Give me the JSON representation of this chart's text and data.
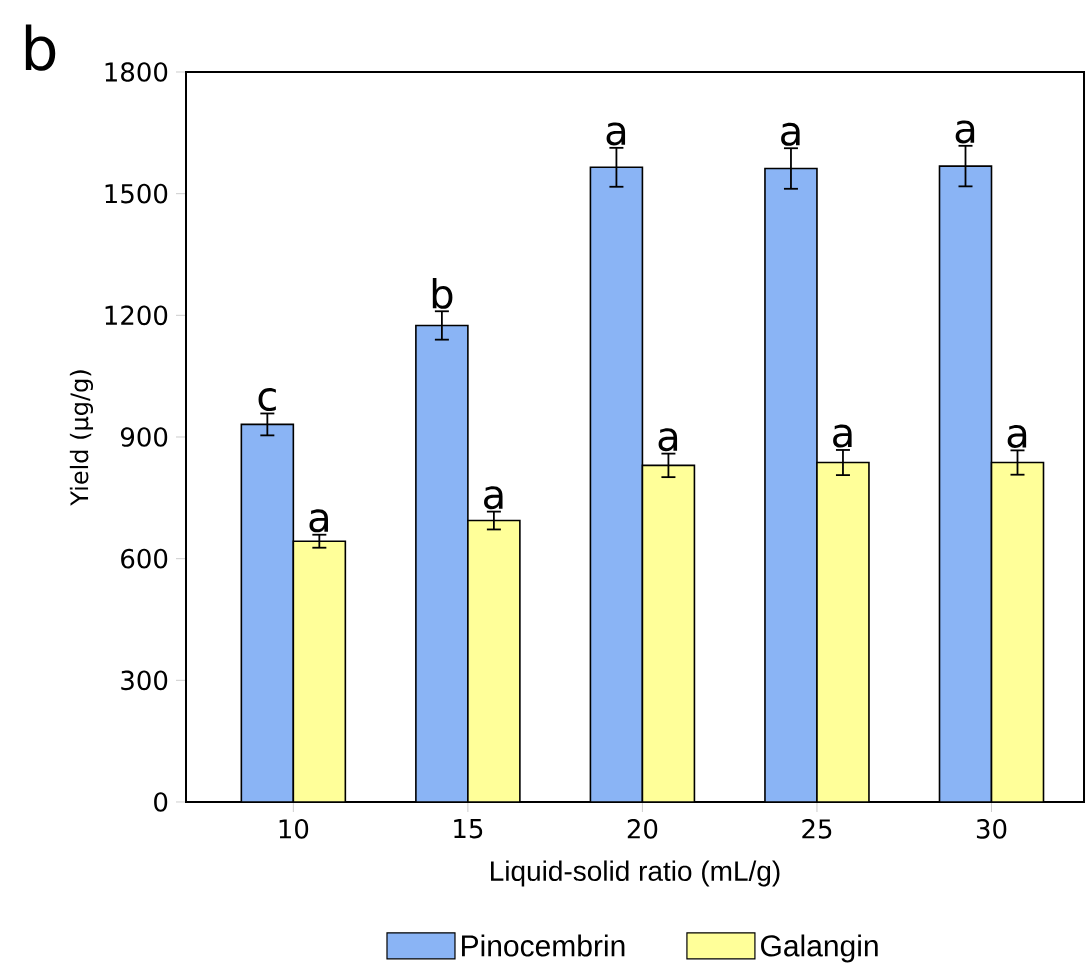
{
  "chart_data": {
    "type": "bar",
    "xlabel": "Liquid-solid ratio (mL/g)",
    "ylabel": "Yield (µg/g)",
    "categories": [
      "10",
      "15",
      "20",
      "25",
      "30"
    ],
    "series": [
      {
        "name": "Pinocembrin",
        "color": "#8ab4f5",
        "values": [
          931,
          1175,
          1565,
          1562,
          1568
        ],
        "errors": [
          27,
          35,
          48,
          50,
          50
        ]
      },
      {
        "name": "Galangin",
        "color": "#ffff99",
        "values": [
          643,
          694,
          830,
          837,
          837
        ],
        "errors": [
          16,
          22,
          29,
          31,
          30
        ]
      }
    ],
    "ylim": [
      0,
      1800
    ],
    "yticks": [
      0,
      300,
      600,
      900,
      1200,
      1500,
      1800
    ],
    "legend": "bottom",
    "grid": false,
    "annotations": [
      "b",
      {
        "text": "c",
        "x": "10",
        "y": 931
      },
      {
        "text": "a",
        "x": "10",
        "y": 643
      },
      {
        "text": "b",
        "x": "15",
        "y": 1175
      },
      {
        "text": "a",
        "x": "15",
        "y": 694
      },
      {
        "text": "a",
        "x": "20",
        "y": 1565
      },
      {
        "text": "a",
        "x": "20",
        "y": 830
      },
      {
        "text": "a",
        "x": "25",
        "y": 1562
      },
      {
        "text": "a",
        "x": "25",
        "y": 837
      },
      {
        "text": "a",
        "x": "30",
        "y": 1568
      },
      {
        "text": "a",
        "x": "30",
        "y": 837
      }
    ]
  }
}
